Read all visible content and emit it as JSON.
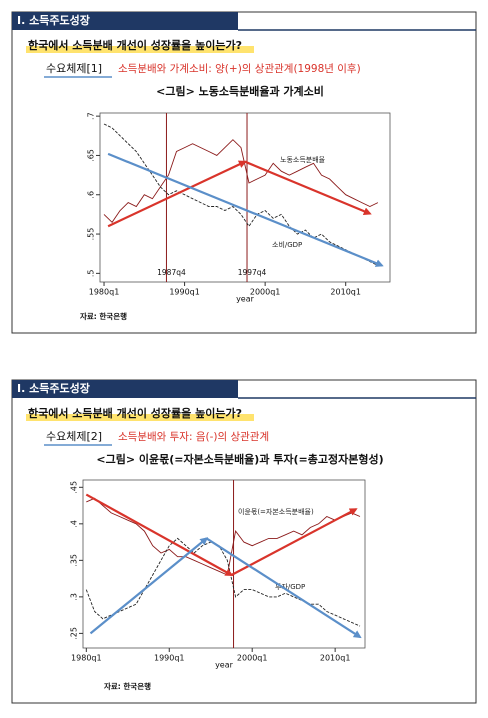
{
  "slides": [
    {
      "header": "Ⅰ. 소득주도성장",
      "title": "한국에서 소득분배 개선이 성장률을 높이는가?",
      "label": "수요체제[1]",
      "subtitle": "소득분배와 가계소비: 양(+)의 상관관계(1998년 이후)",
      "caption": "<그림> 노동소득분배율과 가계소비",
      "source": "자료: 한국은행"
    },
    {
      "header": "Ⅰ. 소득주도성장",
      "title": "한국에서 소득분배 개선이 성장률을 높이는가?",
      "label": "수요체제[2]",
      "subtitle": "소득분배와 투자: 음(-)의 상관관계",
      "caption": "<그림> 이윤몫(=자본소득분배율)과 투자(=총고정자본형성)",
      "source": "자료: 한국은행"
    }
  ],
  "chart_data": [
    {
      "type": "line",
      "xlabel": "year",
      "x": [
        1980,
        1981,
        1982,
        1983,
        1984,
        1985,
        1986,
        1987,
        1988,
        1989,
        1990,
        1991,
        1992,
        1993,
        1994,
        1995,
        1996,
        1997,
        1998,
        1999,
        2000,
        2001,
        2002,
        2003,
        2004,
        2005,
        2006,
        2007,
        2008,
        2009,
        2010,
        2011,
        2012,
        2013,
        2014
      ],
      "series": [
        {
          "name": "노동소득분배율",
          "color": "#8b1a1a",
          "style": "solid",
          "values": [
            0.575,
            0.565,
            0.58,
            0.59,
            0.585,
            0.6,
            0.595,
            0.61,
            0.625,
            0.655,
            0.66,
            0.665,
            0.66,
            0.655,
            0.65,
            0.66,
            0.67,
            0.66,
            0.615,
            0.62,
            0.625,
            0.64,
            0.63,
            0.625,
            0.63,
            0.635,
            0.64,
            0.625,
            0.62,
            0.61,
            0.6,
            0.595,
            0.59,
            0.585,
            0.59
          ]
        },
        {
          "name": "소비/GDP",
          "color": "#222222",
          "style": "dashed",
          "values": [
            0.69,
            0.685,
            0.675,
            0.665,
            0.655,
            0.64,
            0.625,
            0.61,
            0.6,
            0.605,
            0.6,
            0.595,
            0.59,
            0.585,
            0.585,
            0.58,
            0.585,
            0.575,
            0.56,
            0.575,
            0.58,
            0.57,
            0.575,
            0.56,
            0.55,
            0.555,
            0.545,
            0.55,
            0.54,
            0.535,
            0.53,
            0.525,
            0.52,
            0.515,
            0.51
          ]
        }
      ],
      "xlim": [
        1979.5,
        2015.5
      ],
      "xticks": [
        {
          "value": 1980,
          "label": "1980q1"
        },
        {
          "value": 1990,
          "label": "1990q1"
        },
        {
          "value": 2000,
          "label": "2000q1"
        },
        {
          "value": 2010,
          "label": "2010q1"
        }
      ],
      "ylim": [
        0.489,
        0.704
      ],
      "yticks": [
        {
          "value": 0.5,
          "label": ".5"
        },
        {
          "value": 0.55,
          "label": ".55"
        },
        {
          "value": 0.6,
          "label": ".6"
        },
        {
          "value": 0.65,
          "label": ".65"
        },
        {
          "value": 0.7,
          "label": ".7"
        }
      ],
      "vlines": [
        {
          "value": 1987.75,
          "label": "1987q4"
        },
        {
          "value": 1997.75,
          "label": "1997q4"
        }
      ],
      "vline_color": "#8b1a1a",
      "arrows": [
        {
          "color": "#d9342b",
          "x": [
            1980.5,
            1997.5
          ],
          "y": [
            0.56,
            0.642
          ]
        },
        {
          "color": "#d9342b",
          "x": [
            1997.5,
            2013
          ],
          "y": [
            0.642,
            0.576
          ]
        },
        {
          "color": "#5b8fc9",
          "x": [
            1980.5,
            2014.5
          ],
          "y": [
            0.652,
            0.51
          ]
        }
      ]
    },
    {
      "type": "line",
      "xlabel": "year",
      "x": [
        1980,
        1981,
        1982,
        1983,
        1984,
        1985,
        1986,
        1987,
        1988,
        1989,
        1990,
        1991,
        1992,
        1993,
        1994,
        1995,
        1996,
        1997,
        1998,
        1999,
        2000,
        2001,
        2002,
        2003,
        2004,
        2005,
        2006,
        2007,
        2008,
        2009,
        2010,
        2011,
        2012,
        2013
      ],
      "series": [
        {
          "name": "이윤몫(=자본소득분배율)",
          "color": "#8b1a1a",
          "style": "solid",
          "values": [
            0.43,
            0.435,
            0.425,
            0.415,
            0.41,
            0.405,
            0.4,
            0.39,
            0.37,
            0.36,
            0.365,
            0.355,
            0.355,
            0.35,
            0.345,
            0.34,
            0.335,
            0.33,
            0.39,
            0.375,
            0.37,
            0.375,
            0.38,
            0.38,
            0.385,
            0.39,
            0.385,
            0.395,
            0.4,
            0.41,
            0.405,
            0.41,
            0.415,
            0.41
          ]
        },
        {
          "name": "투자/GDP",
          "color": "#222222",
          "style": "dashed",
          "values": [
            0.31,
            0.28,
            0.27,
            0.275,
            0.28,
            0.285,
            0.29,
            0.31,
            0.33,
            0.35,
            0.37,
            0.38,
            0.37,
            0.36,
            0.37,
            0.375,
            0.37,
            0.35,
            0.3,
            0.31,
            0.31,
            0.305,
            0.3,
            0.3,
            0.305,
            0.3,
            0.295,
            0.29,
            0.29,
            0.28,
            0.275,
            0.27,
            0.265,
            0.26
          ]
        }
      ],
      "xlim": [
        1979.6,
        2013.6
      ],
      "xticks": [
        {
          "value": 1980,
          "label": "1980q1"
        },
        {
          "value": 1990,
          "label": "1990q1"
        },
        {
          "value": 2000,
          "label": "2000q1"
        },
        {
          "value": 2010,
          "label": "2010q1"
        }
      ],
      "ylim": [
        0.23,
        0.46
      ],
      "yticks": [
        {
          "value": 0.25,
          "label": ".25"
        },
        {
          "value": 0.3,
          "label": ".3"
        },
        {
          "value": 0.35,
          "label": ".35"
        },
        {
          "value": 0.4,
          "label": ".4"
        },
        {
          "value": 0.45,
          "label": ".45"
        }
      ],
      "vlines": [
        {
          "value": 1997.75
        }
      ],
      "vline_color": "#8b1a1a",
      "arrows": [
        {
          "color": "#d9342b",
          "x": [
            1980,
            1997.5
          ],
          "y": [
            0.44,
            0.33
          ]
        },
        {
          "color": "#d9342b",
          "x": [
            1997.5,
            2012.5
          ],
          "y": [
            0.33,
            0.42
          ]
        },
        {
          "color": "#5b8fc9",
          "x": [
            1980.5,
            1994.5
          ],
          "y": [
            0.25,
            0.38
          ]
        },
        {
          "color": "#5b8fc9",
          "x": [
            1994.5,
            2013
          ],
          "y": [
            0.38,
            0.245
          ]
        }
      ]
    }
  ]
}
